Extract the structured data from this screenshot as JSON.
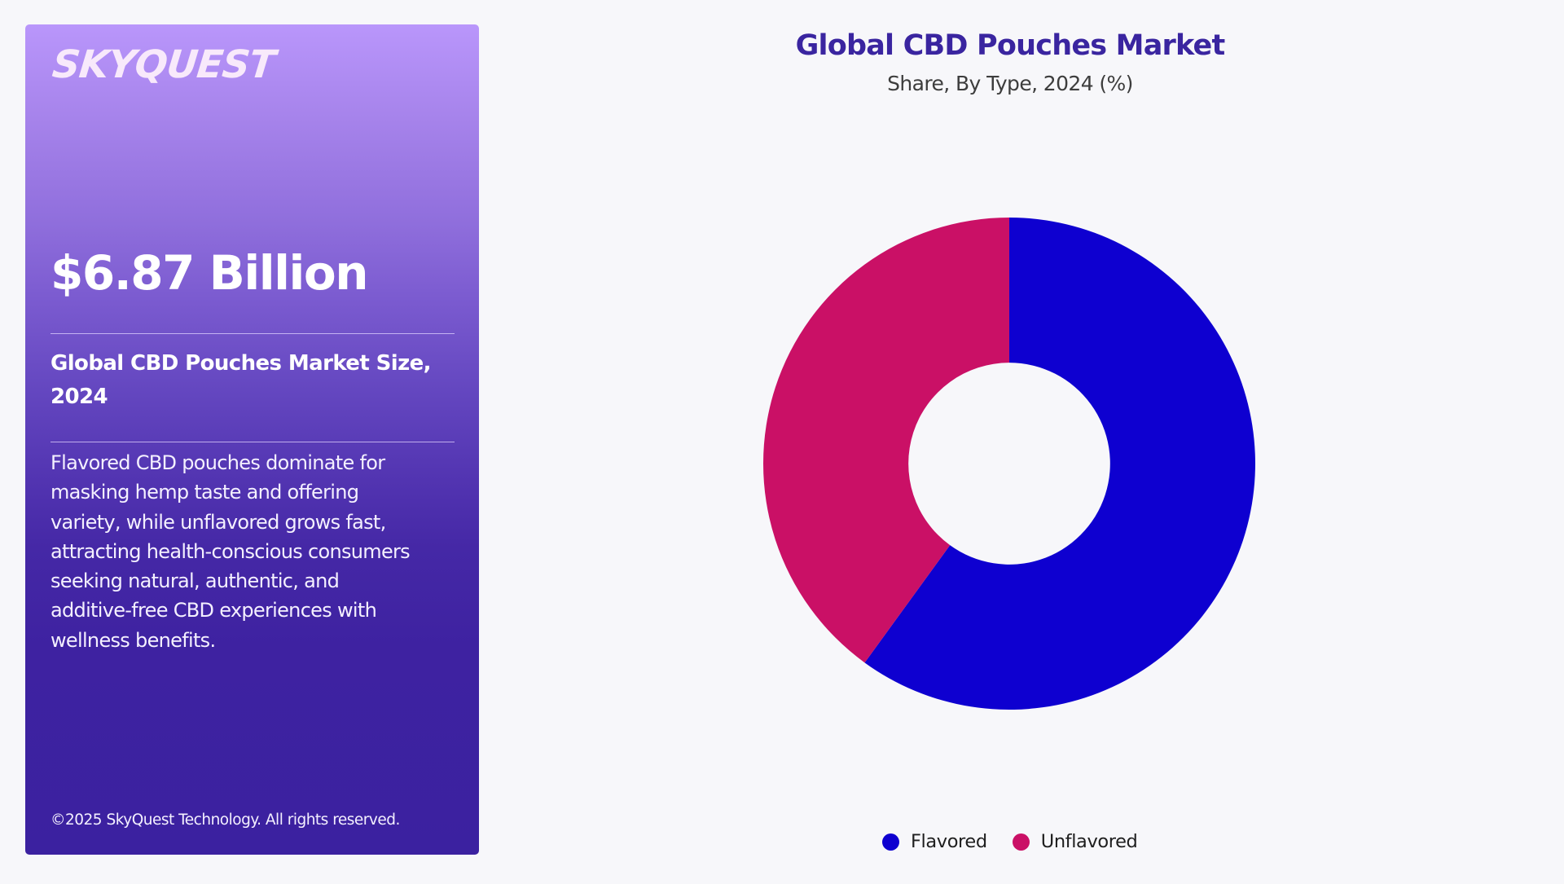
{
  "sidebar": {
    "logo": "SKYQUEST",
    "headline_value": "$6.87 Billion",
    "metric_label": "Global CBD Pouches Market Size, 2024",
    "description_lines": [
      "Flavored CBD pouches dominate for",
      "masking hemp taste and offering",
      "variety, while unflavored grows fast,",
      "attracting health-conscious consumers",
      "seeking natural, authentic, and",
      "additive-free CBD experiences with",
      "wellness benefits."
    ],
    "copyright": "©2025 SkyQuest Technology. All rights reserved."
  },
  "colors": {
    "panel_top": "#b996fb",
    "panel_bottom": "#3b21a0",
    "title": "#3a25a0",
    "background": "#f7f7fa",
    "flavored": "#0e00d0",
    "unflavored": "#ca1066"
  },
  "chart_data": {
    "type": "pie",
    "variant": "donut",
    "title": "Global CBD Pouches Market",
    "subtitle": "Share, By Type, 2024 (%)",
    "categories": [
      "Flavored",
      "Unflavored"
    ],
    "values": [
      60,
      40
    ],
    "colors": [
      "#0e00d0",
      "#ca1066"
    ],
    "start_angle_deg": 0,
    "direction": "clockwise",
    "inner_radius_ratio": 0.41,
    "data_labels": false,
    "legend": {
      "position": "bottom",
      "entries": [
        "Flavored",
        "Unflavored"
      ]
    }
  }
}
